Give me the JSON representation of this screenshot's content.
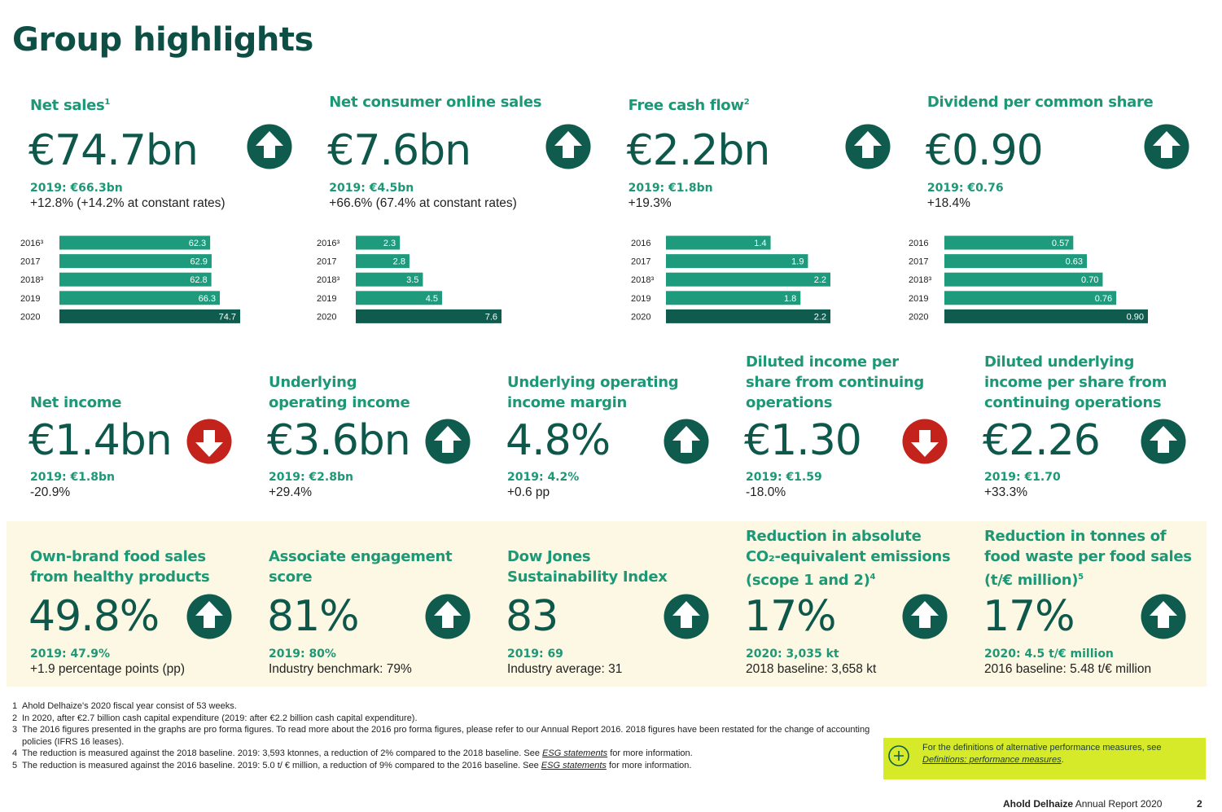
{
  "title": "Group highlights",
  "colors": {
    "bar": "#1e9b7d",
    "bar_latest": "#0f5b4e",
    "up": "#0f5b4e",
    "down": "#c4231b"
  },
  "highlights": [
    {
      "label": "Net sales",
      "sup": "1",
      "value": "€74.7bn",
      "trend": "up",
      "prior": "2019: €66.3bn",
      "change": "+12.8% (+14.2% at constant rates)",
      "chart": {
        "categories": [
          "2016³",
          "2017",
          "2018³",
          "2019",
          "2020"
        ],
        "values": [
          62.3,
          62.9,
          62.8,
          66.3,
          74.7
        ]
      }
    },
    {
      "label": "Net consumer online sales",
      "value": "€7.6bn",
      "trend": "up",
      "prior": "2019: €4.5bn",
      "change": "+66.6% (67.4% at constant rates)",
      "chart": {
        "categories": [
          "2016³",
          "2017",
          "2018³",
          "2019",
          "2020"
        ],
        "values": [
          2.3,
          2.8,
          3.5,
          4.5,
          7.6
        ]
      }
    },
    {
      "label": "Free cash flow",
      "sup": "2",
      "value": "€2.2bn",
      "trend": "up",
      "prior": "2019: €1.8bn",
      "change": "+19.3%",
      "chart": {
        "categories": [
          "2016",
          "2017",
          "2018³",
          "2019",
          "2020"
        ],
        "values": [
          1.4,
          1.9,
          2.2,
          1.8,
          2.2
        ]
      }
    },
    {
      "label": "Dividend per common share",
      "value": "€0.90",
      "trend": "up",
      "prior": "2019: €0.76",
      "change": "+18.4%",
      "chart": {
        "categories": [
          "2016",
          "2017",
          "2018³",
          "2019",
          "2020"
        ],
        "values": [
          0.57,
          0.63,
          0.7,
          0.76,
          0.9
        ],
        "value_labels": [
          "0.57",
          "0.63",
          "0.70",
          "0.76",
          "0.90"
        ]
      }
    }
  ],
  "metrics": [
    {
      "label_lines": [
        "Net income"
      ],
      "value": "€1.4bn",
      "trend": "down",
      "prior": "2019: €1.8bn",
      "change": "-20.9%"
    },
    {
      "label_lines": [
        "Underlying",
        "operating income"
      ],
      "value": "€3.6bn",
      "trend": "up",
      "prior": "2019: €2.8bn",
      "change": "+29.4%"
    },
    {
      "label_lines": [
        "Underlying operating",
        "income margin"
      ],
      "value": "4.8%",
      "trend": "up",
      "prior": "2019: 4.2%",
      "change": "+0.6 pp"
    },
    {
      "label_lines": [
        "Diluted income per",
        "share from continuing",
        "operations"
      ],
      "value": "€1.30",
      "trend": "down",
      "prior": "2019: €1.59",
      "change": "-18.0%"
    },
    {
      "label_lines": [
        "Diluted underlying",
        "income per share from",
        "continuing operations"
      ],
      "value": "€2.26",
      "trend": "up",
      "prior": "2019: €1.70",
      "change": "+33.3%"
    }
  ],
  "sustainability": [
    {
      "label_lines": [
        "Own-brand food sales",
        "from healthy products"
      ],
      "value": "49.8%",
      "trend": "up",
      "prior": "2019: 47.9%",
      "change": "+1.9 percentage points (pp)"
    },
    {
      "label_lines": [
        "Associate engagement",
        "score"
      ],
      "value": "81%",
      "trend": "up",
      "prior": "2019: 80%",
      "change": "Industry benchmark: 79%"
    },
    {
      "label_lines": [
        "Dow Jones",
        "Sustainability Index"
      ],
      "value": "83",
      "trend": "up",
      "prior": "2019: 69",
      "change": "Industry average: 31"
    },
    {
      "label_lines": [
        "Reduction in absolute",
        "CO₂-equivalent emissions",
        "(scope 1 and 2)"
      ],
      "sup": "4",
      "value": "17%",
      "trend": "up",
      "prior": "2020: 3,035 kt",
      "change": "2018 baseline: 3,658 kt"
    },
    {
      "label_lines": [
        "Reduction in tonnes of",
        "food waste per food sales",
        "(t/€ million)"
      ],
      "sup": "5",
      "value": "17%",
      "trend": "up",
      "prior": "2020: 4.5 t/€ million",
      "change": "2016 baseline: 5.48 t/€ million"
    }
  ],
  "footnotes": [
    {
      "number": "1",
      "text": "Ahold Delhaize's 2020 fiscal year consist of 53 weeks."
    },
    {
      "number": "2",
      "text": "In 2020, after €2.7 billion cash capital expenditure (2019: after €2.2 billion cash capital expenditure)."
    },
    {
      "number": "3",
      "text": "The 2016 figures presented in the graphs are pro forma figures. To read more about the 2016 pro forma figures, please refer to our Annual Report 2016. 2018 figures have been restated for the change of accounting policies (IFRS 16 leases)."
    },
    {
      "number": "4",
      "text": "The reduction is measured against the 2018 baseline. 2019: 3,593 ktonnes, a reduction of 2% compared to the 2018 baseline. See ",
      "link": "ESG statements",
      "after": " for more information."
    },
    {
      "number": "5",
      "text": "The reduction is measured against the 2016 baseline. 2019: 5.0 t/ € million, a reduction of 9% compared to the 2016 baseline. See ",
      "link": "ESG statements",
      "after": " for more information."
    }
  ],
  "note": {
    "text": "For the definitions of alternative performance measures, see ",
    "link": "Definitions: performance measures",
    "after": "."
  },
  "footer": {
    "company": "Ahold Delhaize",
    "report": " Annual Report 2020",
    "page": "2"
  }
}
